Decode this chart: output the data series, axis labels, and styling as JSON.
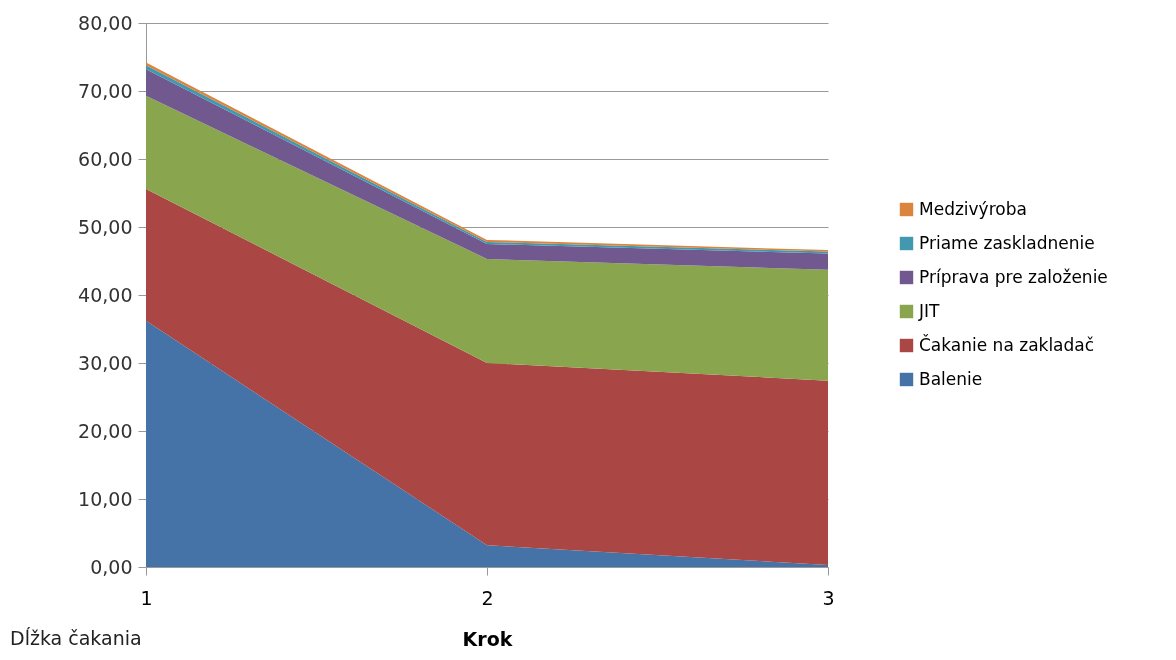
{
  "chart_data": {
    "type": "area",
    "stacked": true,
    "xlabel": "Krok",
    "categories": [
      "1",
      "2",
      "3"
    ],
    "series": [
      {
        "name": "Balenie",
        "color": "#4572a7",
        "values": [
          36.2,
          3.2,
          0.3
        ]
      },
      {
        "name": "Čakanie na zakladač",
        "color": "#aa4643",
        "values": [
          19.4,
          26.8,
          27.1
        ]
      },
      {
        "name": "JIT",
        "color": "#89a54e",
        "values": [
          13.7,
          15.3,
          16.3
        ]
      },
      {
        "name": "Príprava pre založenie",
        "color": "#71588f",
        "values": [
          3.9,
          2.2,
          2.4
        ]
      },
      {
        "name": "Priame zaskladnenie",
        "color": "#4198af",
        "values": [
          0.6,
          0.3,
          0.3
        ]
      },
      {
        "name": "Medzivýroba",
        "color": "#db843d",
        "values": [
          0.4,
          0.3,
          0.2
        ]
      }
    ],
    "ylim": [
      0,
      80
    ],
    "yticks": [
      {
        "value": 0,
        "label": "0,00"
      },
      {
        "value": 10,
        "label": "10,00"
      },
      {
        "value": 20,
        "label": "20,00"
      },
      {
        "value": 30,
        "label": "30,00"
      },
      {
        "value": 40,
        "label": "40,00"
      },
      {
        "value": 50,
        "label": "50,00"
      },
      {
        "value": 60,
        "label": "60,00"
      },
      {
        "value": 70,
        "label": "70,00"
      },
      {
        "value": 80,
        "label": "80,00"
      }
    ],
    "grid": "y",
    "legend": "right",
    "annotations": [
      "Dĺžka čakania"
    ]
  }
}
